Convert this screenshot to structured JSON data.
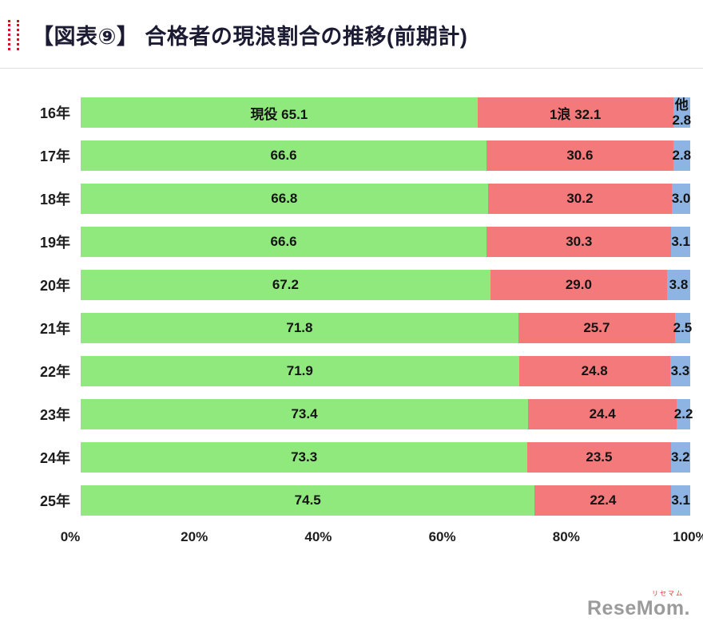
{
  "header": {
    "title": "【図表⑨】 合格者の現浪割合の推移(前期計)"
  },
  "logo": {
    "text": "ReseMom.",
    "ruby": "リセマム"
  },
  "chart_data": {
    "type": "bar",
    "stacked": true,
    "orientation": "horizontal",
    "title": "合格者の現浪割合の推移(前期計)",
    "categories": [
      "16年",
      "17年",
      "18年",
      "19年",
      "20年",
      "21年",
      "22年",
      "23年",
      "24年",
      "25年"
    ],
    "series": [
      {
        "key": "current",
        "name": "現役",
        "color": "#8FE97C",
        "values": [
          65.1,
          66.6,
          66.8,
          66.6,
          67.2,
          71.8,
          71.9,
          73.4,
          73.3,
          74.5
        ]
      },
      {
        "key": "ronin",
        "name": "1浪",
        "color": "#F4797B",
        "values": [
          32.1,
          30.6,
          30.2,
          30.3,
          29.0,
          25.7,
          24.8,
          24.4,
          23.5,
          22.4
        ]
      },
      {
        "key": "other",
        "name": "他",
        "color": "#8EB4E3",
        "values": [
          2.8,
          2.8,
          3.0,
          3.1,
          3.8,
          2.5,
          3.3,
          2.2,
          3.2,
          3.1
        ]
      }
    ],
    "x_ticks": [
      "0%",
      "20%",
      "40%",
      "60%",
      "80%",
      "100%"
    ],
    "xlim": [
      0,
      100
    ],
    "grid": false,
    "legend": "inline-first-row"
  }
}
